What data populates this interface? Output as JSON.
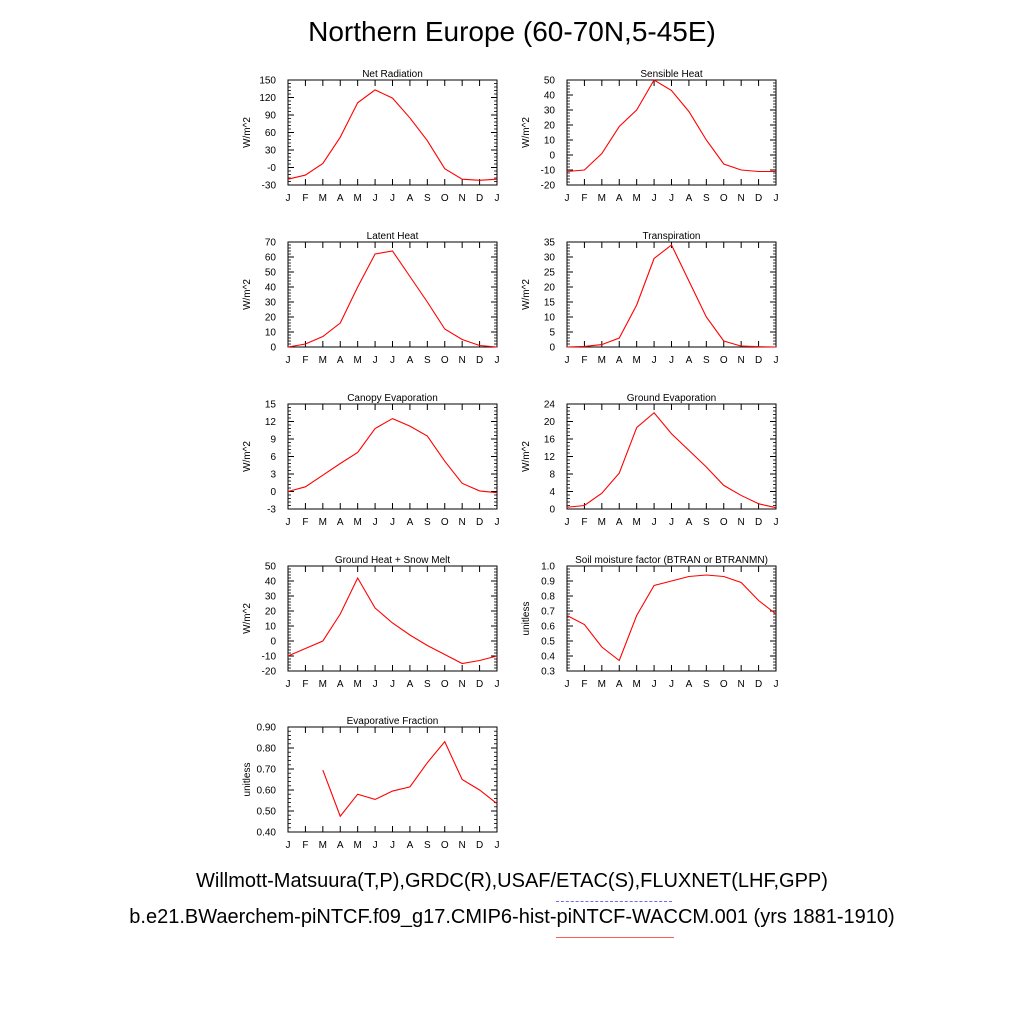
{
  "title": "Northern Europe (60-70N,5-45E)",
  "footer": {
    "observations": "Willmott-Matsuura(T,P),GRDC(R),USAF/ETAC(S),FLUXNET(LHF,GPP)",
    "case": "b.e21.BWaerchem-piNTCF.f09_g17.CMIP6-hist-piNTCF-WACCM.001 (yrs 1881-1910)"
  },
  "colors": {
    "line": "#ff0000",
    "axis": "#000000",
    "obs_dash": "#6a6aff",
    "model_line": "#ff5a5a"
  },
  "chart_data": [
    {
      "type": "line",
      "title": "Net Radiation",
      "ylabel": "W/m^2",
      "categories": [
        "J",
        "F",
        "M",
        "A",
        "M",
        "J",
        "J",
        "A",
        "S",
        "O",
        "N",
        "D",
        "J"
      ],
      "ylim": [
        -30,
        150
      ],
      "yticks": [
        -30,
        0,
        30,
        60,
        90,
        120,
        150
      ],
      "ytick_labels": [
        "-30",
        "-0",
        "30",
        "60",
        "90",
        "120",
        "150"
      ],
      "values": [
        -20,
        -13,
        7,
        52,
        111,
        133,
        119,
        85,
        46,
        -2,
        -20,
        -22,
        -20
      ]
    },
    {
      "type": "line",
      "title": "Sensible Heat",
      "ylabel": "W/m^2",
      "categories": [
        "J",
        "F",
        "M",
        "A",
        "M",
        "J",
        "J",
        "A",
        "S",
        "O",
        "N",
        "D",
        "J"
      ],
      "ylim": [
        -20,
        50
      ],
      "yticks": [
        -20,
        -10,
        0,
        10,
        20,
        30,
        40,
        50
      ],
      "ytick_labels": [
        "-20",
        "-10",
        "0",
        "10",
        "20",
        "30",
        "40",
        "50"
      ],
      "values": [
        -11,
        -10,
        1,
        19,
        30,
        50,
        43,
        29,
        10,
        -6,
        -10,
        -11,
        -11
      ]
    },
    {
      "type": "line",
      "title": "Latent Heat",
      "ylabel": "W/m^2",
      "categories": [
        "J",
        "F",
        "M",
        "A",
        "M",
        "J",
        "J",
        "A",
        "S",
        "O",
        "N",
        "D",
        "J"
      ],
      "ylim": [
        0,
        70
      ],
      "yticks": [
        0,
        10,
        20,
        30,
        40,
        50,
        60,
        70
      ],
      "ytick_labels": [
        "0",
        "10",
        "20",
        "30",
        "40",
        "50",
        "60",
        "70"
      ],
      "values": [
        0,
        2,
        7,
        16,
        40,
        62,
        64,
        47,
        30,
        12,
        5,
        1,
        0
      ]
    },
    {
      "type": "line",
      "title": "Transpiration",
      "ylabel": "W/m^2",
      "categories": [
        "J",
        "F",
        "M",
        "A",
        "M",
        "J",
        "J",
        "A",
        "S",
        "O",
        "N",
        "D",
        "J"
      ],
      "ylim": [
        0,
        35
      ],
      "yticks": [
        0,
        5,
        10,
        15,
        20,
        25,
        30,
        35
      ],
      "ytick_labels": [
        "0",
        "5",
        "10",
        "15",
        "20",
        "25",
        "30",
        "35"
      ],
      "values": [
        0,
        0.2,
        0.8,
        3,
        14,
        29.5,
        34,
        22,
        10,
        2,
        0.3,
        0.1,
        0
      ]
    },
    {
      "type": "line",
      "title": "Canopy Evaporation",
      "ylabel": "W/m^2",
      "categories": [
        "J",
        "F",
        "M",
        "A",
        "M",
        "J",
        "J",
        "A",
        "S",
        "O",
        "N",
        "D",
        "J"
      ],
      "ylim": [
        -3,
        15
      ],
      "yticks": [
        -3,
        0,
        3,
        6,
        9,
        12,
        15
      ],
      "ytick_labels": [
        "-3",
        "0",
        "3",
        "6",
        "9",
        "12",
        "15"
      ],
      "values": [
        0,
        0.8,
        2.8,
        4.8,
        6.7,
        10.8,
        12.5,
        11.2,
        9.5,
        5.2,
        1.4,
        0.1,
        -0.2
      ]
    },
    {
      "type": "line",
      "title": "Ground Evaporation",
      "ylabel": "W/m^2",
      "categories": [
        "J",
        "F",
        "M",
        "A",
        "M",
        "J",
        "J",
        "A",
        "S",
        "O",
        "N",
        "D",
        "J"
      ],
      "ylim": [
        0,
        24
      ],
      "yticks": [
        0,
        4,
        8,
        12,
        16,
        20,
        24
      ],
      "ytick_labels": [
        "0",
        "4",
        "8",
        "12",
        "16",
        "20",
        "24"
      ],
      "values": [
        0.4,
        0.8,
        3.6,
        8.2,
        18.6,
        22,
        17.2,
        13.4,
        9.6,
        5.4,
        3.1,
        1.2,
        0.3
      ]
    },
    {
      "type": "line",
      "title": "Ground Heat + Snow Melt",
      "ylabel": "W/m^2",
      "categories": [
        "J",
        "F",
        "M",
        "A",
        "M",
        "J",
        "J",
        "A",
        "S",
        "O",
        "N",
        "D",
        "J"
      ],
      "ylim": [
        -20,
        50
      ],
      "yticks": [
        -20,
        -10,
        0,
        10,
        20,
        30,
        40,
        50
      ],
      "ytick_labels": [
        "-20",
        "-10",
        "0",
        "10",
        "20",
        "30",
        "40",
        "50"
      ],
      "values": [
        -10,
        -5,
        0,
        18,
        42,
        22,
        12,
        4,
        -3,
        -9,
        -15,
        -13,
        -10
      ]
    },
    {
      "type": "line",
      "title": "Soil moisture factor (BTRAN or BTRANMN)",
      "ylabel": "unitless",
      "categories": [
        "J",
        "F",
        "M",
        "A",
        "M",
        "J",
        "J",
        "A",
        "S",
        "O",
        "N",
        "D",
        "J"
      ],
      "ylim": [
        0.3,
        1.0
      ],
      "yticks": [
        0.3,
        0.4,
        0.5,
        0.6,
        0.7,
        0.8,
        0.9,
        1.0
      ],
      "ytick_labels": [
        "0.3",
        "0.4",
        "0.5",
        "0.6",
        "0.7",
        "0.8",
        "0.9",
        "1.0"
      ],
      "values": [
        0.67,
        0.61,
        0.46,
        0.37,
        0.67,
        0.87,
        0.9,
        0.93,
        0.94,
        0.93,
        0.89,
        0.77,
        0.68
      ]
    },
    {
      "type": "line",
      "title": "Evaporative Fraction",
      "ylabel": "unitless",
      "categories": [
        "J",
        "F",
        "M",
        "A",
        "M",
        "J",
        "J",
        "A",
        "S",
        "O",
        "N",
        "D",
        "J"
      ],
      "ylim": [
        0.4,
        0.9
      ],
      "yticks": [
        0.4,
        0.5,
        0.6,
        0.7,
        0.8,
        0.9
      ],
      "ytick_labels": [
        "0.40",
        "0.50",
        "0.60",
        "0.70",
        "0.80",
        "0.90"
      ],
      "values": [
        null,
        null,
        0.695,
        0.475,
        0.58,
        0.555,
        0.595,
        0.615,
        0.73,
        0.83,
        0.65,
        0.6,
        0.535
      ]
    }
  ]
}
